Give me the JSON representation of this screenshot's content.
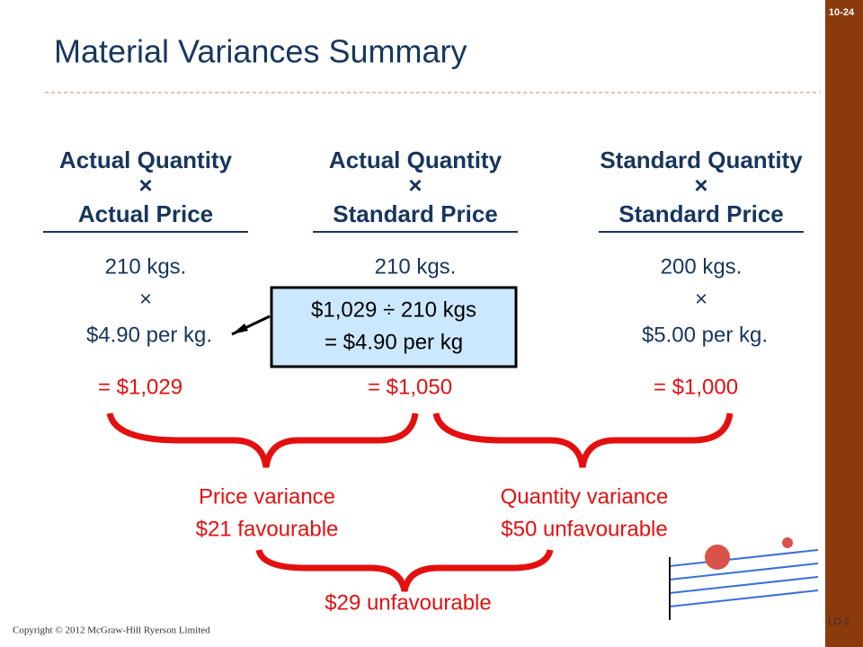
{
  "slide_number": "10-24",
  "title": "Material Variances Summary",
  "columns": [
    {
      "header": [
        "Actual Quantity",
        "×",
        "Actual Price"
      ],
      "quantity": "210 kgs.",
      "times": "×",
      "price": "$4.90 per kg.",
      "total": "= $1,029"
    },
    {
      "header": [
        "Actual Quantity",
        "×",
        "Standard Price"
      ],
      "quantity": "210 kgs.",
      "total": "= $1,050"
    },
    {
      "header": [
        "Standard Quantity",
        "×",
        "Standard Price"
      ],
      "quantity": "200 kgs.",
      "times": "×",
      "price": "$5.00 per kg.",
      "total": "= $1,000"
    }
  ],
  "callout": [
    "$1,029 ÷ 210 kgs",
    "= $4.90 per kg"
  ],
  "price_variance": [
    "Price variance",
    "$21 favourable"
  ],
  "quantity_variance": [
    "Quantity variance",
    "$50 unfavourable"
  ],
  "total_variance": "$29 unfavourable",
  "footer": {
    "copyright": "Copyright © 2012 McGraw-Hill Ryerson Limited",
    "objective": "LO 2"
  }
}
